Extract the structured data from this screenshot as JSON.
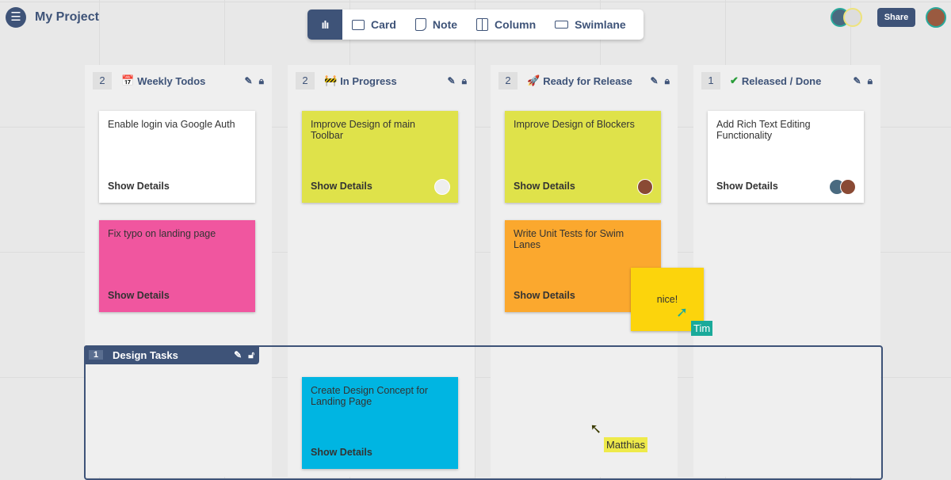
{
  "header": {
    "menu_icon": "hamburger-icon",
    "title": "My Project",
    "share_label": "Share"
  },
  "toolbar": {
    "items": [
      {
        "label": "Card",
        "icon": "card-icon"
      },
      {
        "label": "Note",
        "icon": "note-icon"
      },
      {
        "label": "Column",
        "icon": "column-icon"
      },
      {
        "label": "Swimlane",
        "icon": "swimlane-icon"
      }
    ]
  },
  "columns": [
    {
      "count": "2",
      "emoji": "📅",
      "title": "Weekly Todos",
      "cards": [
        {
          "text": "Enable login via Google Auth",
          "details": "Show Details",
          "color": "#ffffff"
        },
        {
          "text": "Fix typo on landing page",
          "details": "Show Details",
          "color": "#f0569f"
        }
      ]
    },
    {
      "count": "2",
      "emoji": "🚧",
      "title": "In Progress",
      "cards": [
        {
          "text": "Improve Design of main Toolbar",
          "details": "Show Details",
          "color": "#dfe24a"
        },
        {
          "text": "Create Design Concept for Landing Page",
          "details": "Show Details",
          "color": "#00b5e2"
        }
      ]
    },
    {
      "count": "2",
      "emoji": "🚀",
      "title": "Ready for Release",
      "cards": [
        {
          "text": "Improve Design of Blockers",
          "details": "Show Details",
          "color": "#dfe24a"
        },
        {
          "text": "Write Unit Tests for Swim Lanes",
          "details": "Show Details",
          "color": "#fba82e"
        }
      ]
    },
    {
      "count": "1",
      "emoji": "✔",
      "title": "Released / Done",
      "cards": [
        {
          "text": "Add Rich Text Editing Functionality",
          "details": "Show Details",
          "color": "#ffffff"
        }
      ]
    }
  ],
  "swimlane": {
    "count": "1",
    "title": "Design Tasks"
  },
  "note": {
    "text": "nice!",
    "color": "#fcd40c"
  },
  "cursors": [
    {
      "name": "Tim",
      "color": "#1aaa9a"
    },
    {
      "name": "Matthias",
      "color": "#eeea4a"
    }
  ]
}
